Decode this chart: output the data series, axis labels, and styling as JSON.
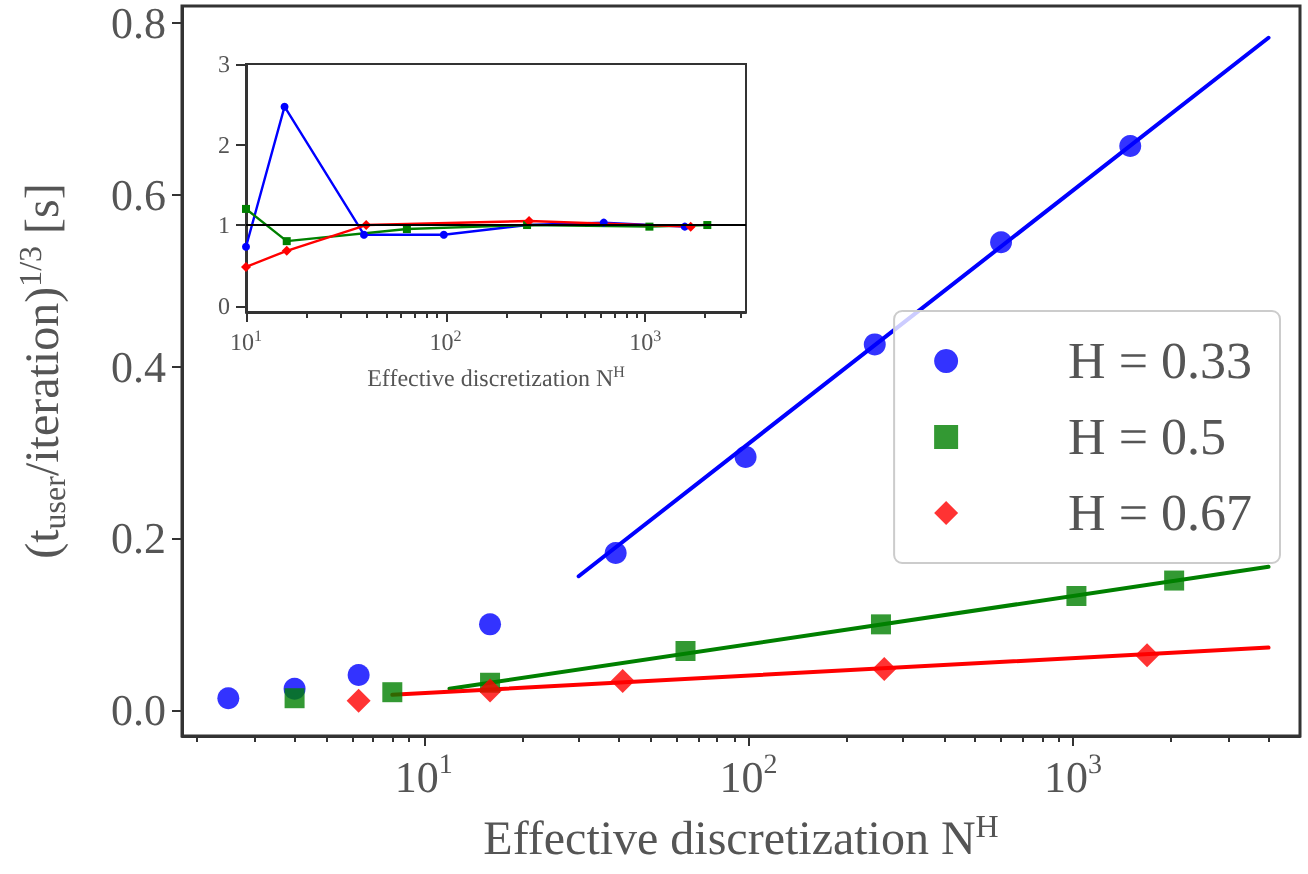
{
  "chart_data": [
    {
      "type": "scatter",
      "xlabel": "Effective discretization N$^{H}$",
      "ylabel": "(t$_{user}$/iteration)$^{1/3}$ [s]",
      "log": "x",
      "grid": false,
      "legend": "right",
      "xlim": [
        1.8,
        5000
      ],
      "ylim": [
        -0.03,
        0.82
      ],
      "xticks": [
        {
          "value": 10,
          "label": "10$^{1}$"
        },
        {
          "value": 100,
          "label": "10$^{2}$"
        },
        {
          "value": 1000,
          "label": "10$^{3}$"
        }
      ],
      "yticks": [
        {
          "value": 0,
          "label": "0.0"
        },
        {
          "value": 0.2,
          "label": "0.2"
        },
        {
          "value": 0.4,
          "label": "0.4"
        },
        {
          "value": 0.6,
          "label": "0.6"
        },
        {
          "value": 0.8,
          "label": "0.8"
        }
      ],
      "series": [
        {
          "name": "H = 0.33",
          "color": "#0000ff",
          "marker": "circle",
          "x": [
            2.5,
            4,
            6.3,
            16,
            39,
            98,
            245,
            600,
            1500
          ],
          "values": [
            0.014,
            0.025,
            0.041,
            0.1,
            0.183,
            0.295,
            0.426,
            0.545,
            0.657
          ]
        },
        {
          "name": "H = 0.5",
          "color": "#008000",
          "marker": "square",
          "x": [
            4,
            8,
            16,
            64,
            256,
            1024,
            2048
          ],
          "values": [
            0.014,
            0.021,
            0.032,
            0.069,
            0.1,
            0.133,
            0.151
          ]
        },
        {
          "name": "H = 0.67",
          "color": "#ff0000",
          "marker": "diamond",
          "x": [
            6.3,
            16,
            41,
            262,
            1690
          ],
          "values": [
            0.011,
            0.023,
            0.034,
            0.048,
            0.064
          ]
        },
        {
          "type": "line",
          "color": "#0000ff",
          "marker": "none",
          "x": [
            30,
            4000
          ],
          "values": [
            0.156,
            0.783
          ]
        },
        {
          "type": "line",
          "color": "#008000",
          "marker": "none",
          "x": [
            12,
            4000
          ],
          "values": [
            0.025,
            0.167
          ]
        },
        {
          "type": "line",
          "color": "#ff0000",
          "marker": "none",
          "x": [
            8,
            4000
          ],
          "values": [
            0.018,
            0.073
          ]
        }
      ]
    },
    {
      "type": "line",
      "xlabel": "Effective discretization N$^{H}$",
      "log": "x",
      "grid": false,
      "legend": false,
      "xlim": [
        10,
        3200
      ],
      "ylim": [
        -0.08,
        3
      ],
      "xticks": [
        {
          "value": 10,
          "label": "10$^{1}$"
        },
        {
          "value": 100,
          "label": "10$^{2}$"
        },
        {
          "value": 1000,
          "label": "10$^{3}$"
        }
      ],
      "yticks": [
        0,
        1,
        2,
        3
      ],
      "ref_lines": [
        {
          "axis": "y",
          "value": 1,
          "color": "#000000"
        }
      ],
      "series": [
        {
          "color": "#0000ff",
          "marker": "circle",
          "x": [
            10,
            15.6,
            39,
            98,
            257,
            620,
            1580
          ],
          "values": [
            0.73,
            2.47,
            0.88,
            0.88,
            1.0,
            1.03,
            0.98
          ]
        },
        {
          "color": "#008000",
          "marker": "square",
          "x": [
            10,
            16,
            64,
            256,
            1050,
            2048
          ],
          "values": [
            1.2,
            0.8,
            0.95,
            1.0,
            0.98,
            1.0
          ]
        },
        {
          "color": "#ff0000",
          "marker": "diamond",
          "x": [
            10,
            16,
            40,
            262,
            1690
          ],
          "values": [
            0.48,
            0.68,
            1.0,
            1.05,
            0.98
          ]
        }
      ]
    }
  ]
}
